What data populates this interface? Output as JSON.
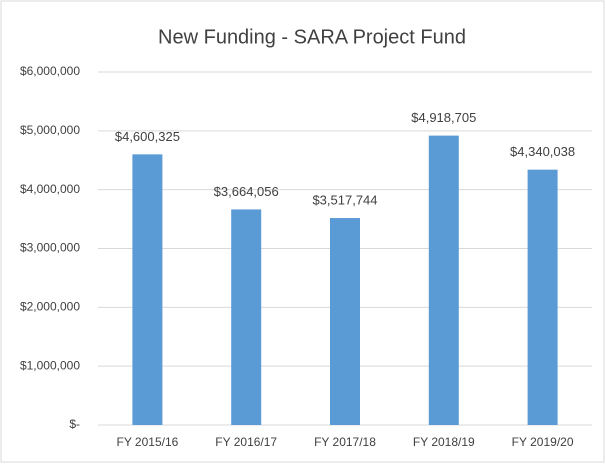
{
  "chart_data": {
    "type": "bar",
    "title": "New Funding - SARA Project Fund",
    "categories": [
      "FY 2015/16",
      "FY 2016/17",
      "FY 2017/18",
      "FY 2018/19",
      "FY 2019/20"
    ],
    "values": [
      4600325,
      3664056,
      3517744,
      4918705,
      4340038
    ],
    "value_labels": [
      "$4,600,325",
      "$3,664,056",
      "$3,517,744",
      "$4,918,705",
      "$4,340,038"
    ],
    "color": "#5b9bd5",
    "ylim": [
      0,
      6000000
    ],
    "yticks": [
      {
        "value": 0,
        "label": "$-"
      },
      {
        "value": 1000000,
        "label": "$1,000,000"
      },
      {
        "value": 2000000,
        "label": "$2,000,000"
      },
      {
        "value": 3000000,
        "label": "$3,000,000"
      },
      {
        "value": 4000000,
        "label": "$4,000,000"
      },
      {
        "value": 5000000,
        "label": "$5,000,000"
      },
      {
        "value": 6000000,
        "label": "$6,000,000"
      }
    ],
    "grid": true
  }
}
